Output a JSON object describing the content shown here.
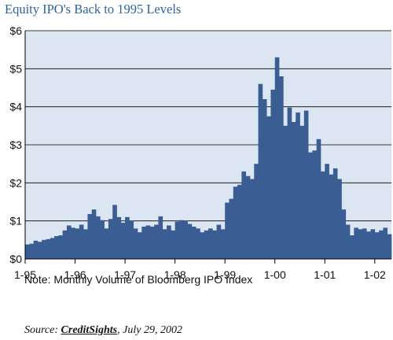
{
  "colors": {
    "title": "#2b64a0",
    "bar": "#3a5d94",
    "plot_bg": "#dce6f2",
    "grid": "#000000"
  },
  "chart_data": {
    "type": "bar",
    "title": "Equity IPO's Back to 1995 Levels",
    "xlabel": "",
    "ylabel": "",
    "ylim": [
      0,
      6
    ],
    "yticks": [
      {
        "value": 0,
        "label": "$0"
      },
      {
        "value": 1,
        "label": "$1"
      },
      {
        "value": 2,
        "label": "$2"
      },
      {
        "value": 3,
        "label": "$3"
      },
      {
        "value": 4,
        "label": "$4"
      },
      {
        "value": 5,
        "label": "$5"
      },
      {
        "value": 6,
        "label": "$6"
      }
    ],
    "xticks": [
      {
        "index": 0,
        "label": "1-95"
      },
      {
        "index": 12,
        "label": "1-96"
      },
      {
        "index": 24,
        "label": "1-97"
      },
      {
        "index": 36,
        "label": "1-98"
      },
      {
        "index": 48,
        "label": "1-99"
      },
      {
        "index": 60,
        "label": "1-00"
      },
      {
        "index": 72,
        "label": "1-01"
      },
      {
        "index": 84,
        "label": "1-02"
      }
    ],
    "grid": "horizontal",
    "values": [
      0.38,
      0.4,
      0.48,
      0.45,
      0.5,
      0.52,
      0.55,
      0.6,
      0.62,
      0.75,
      0.88,
      0.82,
      0.8,
      0.9,
      0.78,
      1.18,
      1.3,
      1.12,
      1.02,
      0.8,
      1.05,
      1.42,
      1.1,
      0.95,
      1.1,
      1.0,
      0.8,
      0.7,
      0.85,
      0.88,
      0.85,
      0.9,
      1.12,
      0.78,
      0.88,
      0.75,
      0.98,
      1.02,
      1.0,
      0.92,
      0.85,
      0.8,
      0.7,
      0.75,
      0.8,
      0.75,
      0.9,
      0.78,
      1.48,
      1.58,
      1.9,
      1.95,
      2.3,
      2.18,
      2.1,
      2.5,
      4.6,
      4.2,
      3.75,
      4.45,
      5.3,
      4.8,
      3.5,
      3.98,
      3.6,
      3.85,
      3.5,
      3.9,
      2.8,
      2.85,
      3.15,
      2.3,
      2.5,
      2.22,
      2.38,
      2.1,
      1.3,
      0.9,
      0.62,
      0.82,
      0.78,
      0.8,
      0.72,
      0.78,
      0.7,
      0.75,
      0.82,
      0.65
    ]
  },
  "note": "Note: Monthly Volume of Bloomberg IPO Index",
  "source": {
    "prefix": "Source: ",
    "brand": "CreditSights",
    "suffix": ", July 29, 2002"
  }
}
